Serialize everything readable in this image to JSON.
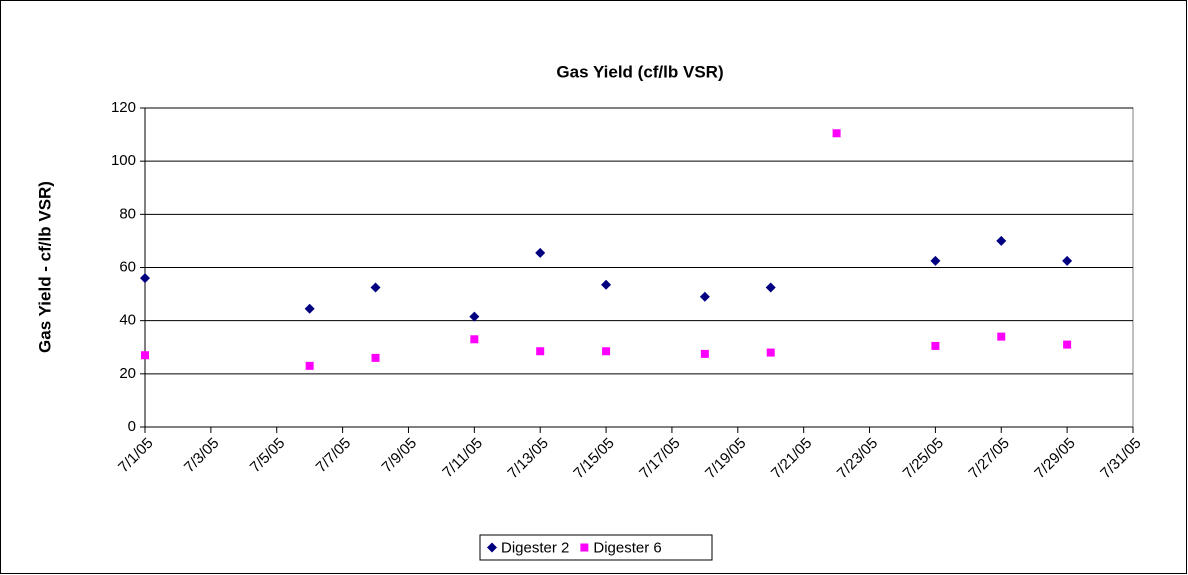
{
  "chart_data": {
    "type": "scatter",
    "title": "Gas Yield (cf/lb VSR)",
    "y_label": "Gas Yield - cf/lb VSR)",
    "series": [
      {
        "name": "Digester 2",
        "color": "#000080",
        "marker": "diamond",
        "x": [
          "7/1/05",
          "7/6/05",
          "7/8/05",
          "7/11/05",
          "7/13/05",
          "7/15/05",
          "7/18/05",
          "7/20/05",
          "7/25/05",
          "7/27/05",
          "7/29/05"
        ],
        "values": [
          56,
          44.5,
          52.5,
          41.5,
          65.5,
          53.5,
          49,
          52.5,
          62.5,
          70,
          62.5
        ]
      },
      {
        "name": "Digester 6",
        "color": "#ff00ff",
        "marker": "square",
        "x": [
          "7/1/05",
          "7/6/05",
          "7/8/05",
          "7/11/05",
          "7/13/05",
          "7/15/05",
          "7/18/05",
          "7/20/05",
          "7/22/05",
          "7/25/05",
          "7/27/05",
          "7/29/05"
        ],
        "values": [
          27,
          23,
          26,
          33,
          28.5,
          28.5,
          27.5,
          28,
          110.5,
          30.5,
          34,
          31
        ]
      }
    ],
    "xlim": [
      "7/1/05",
      "7/31/05"
    ],
    "xticks": [
      "7/1/05",
      "7/3/05",
      "7/5/05",
      "7/7/05",
      "7/9/05",
      "7/11/05",
      "7/13/05",
      "7/15/05",
      "7/17/05",
      "7/19/05",
      "7/21/05",
      "7/23/05",
      "7/25/05",
      "7/27/05",
      "7/29/05",
      "7/31/05"
    ],
    "ylim": [
      0,
      120
    ],
    "yticks": [
      0,
      20,
      40,
      60,
      80,
      100,
      120
    ],
    "grid": true,
    "legend": "bottom"
  }
}
